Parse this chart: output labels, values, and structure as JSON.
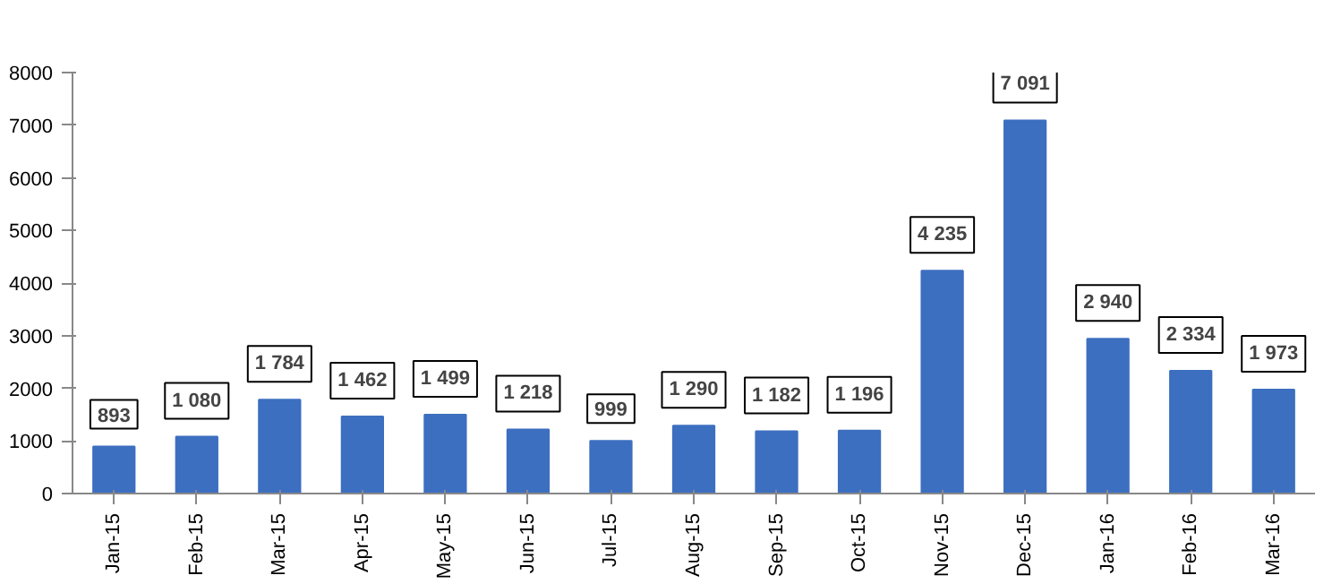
{
  "chart_data": {
    "type": "bar",
    "categories": [
      "Jan-15",
      "Feb-15",
      "Mar-15",
      "Apr-15",
      "May-15",
      "Jun-15",
      "Jul-15",
      "Aug-15",
      "Sep-15",
      "Oct-15",
      "Nov-15",
      "Dec-15",
      "Jan-16",
      "Feb-16",
      "Mar-16"
    ],
    "values": [
      893,
      1080,
      1784,
      1462,
      1499,
      1218,
      999,
      1290,
      1182,
      1196,
      4235,
      7091,
      2940,
      2334,
      1973
    ],
    "value_labels": [
      "893",
      "1 080",
      "1 784",
      "1 462",
      "1 499",
      "1 218",
      "999",
      "1 290",
      "1 182",
      "1 196",
      "4 235",
      "7 091",
      "2 940",
      "2 334",
      "1 973"
    ],
    "color": "#3d6fc0",
    "ylim": [
      0,
      8000
    ],
    "yticks": [
      0,
      1000,
      2000,
      3000,
      4000,
      5000,
      6000,
      7000,
      8000
    ],
    "grid": false
  }
}
